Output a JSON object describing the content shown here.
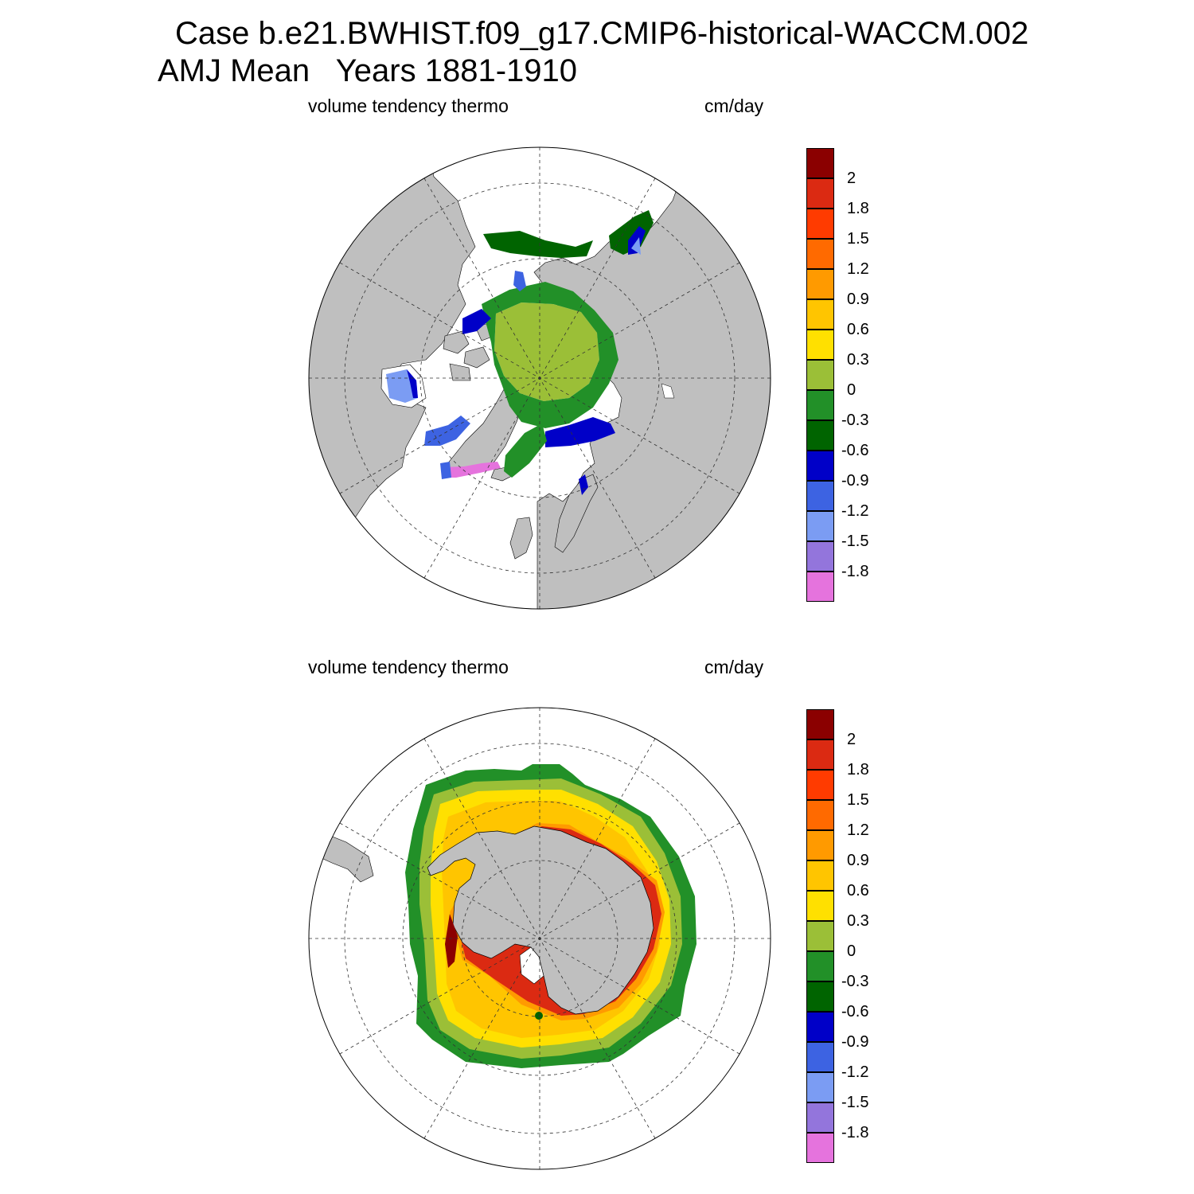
{
  "title": {
    "line1": "Case b.e21.BWHIST.f09_g17.CMIP6-historical-WACCM.002",
    "line2": "AMJ Mean   Years 1881-1910"
  },
  "panels": [
    {
      "hemisphere": "north",
      "left_label": "volume tendency thermo",
      "right_label": "cm/day"
    },
    {
      "hemisphere": "south",
      "left_label": "volume tendency thermo",
      "right_label": "cm/day"
    }
  ],
  "colorbar": {
    "colors": [
      "#8b0000",
      "#db2a12",
      "#ff3b00",
      "#ff6a00",
      "#ff9a00",
      "#ffc500",
      "#ffe000",
      "#9bbf37",
      "#229028",
      "#006400",
      "#0000c8",
      "#3d63e2",
      "#7b9cf3",
      "#9375dc",
      "#e573dd"
    ],
    "labels": [
      "2",
      "1.8",
      "1.5",
      "1.2",
      "0.9",
      "0.6",
      "0.3",
      "0",
      "-0.3",
      "-0.6",
      "-0.9",
      "-1.2",
      "-1.5",
      "-1.8"
    ]
  },
  "palette": {
    "land": "#bfbfbf",
    "ocean": "#ffffff",
    "grid": "#333333"
  }
}
